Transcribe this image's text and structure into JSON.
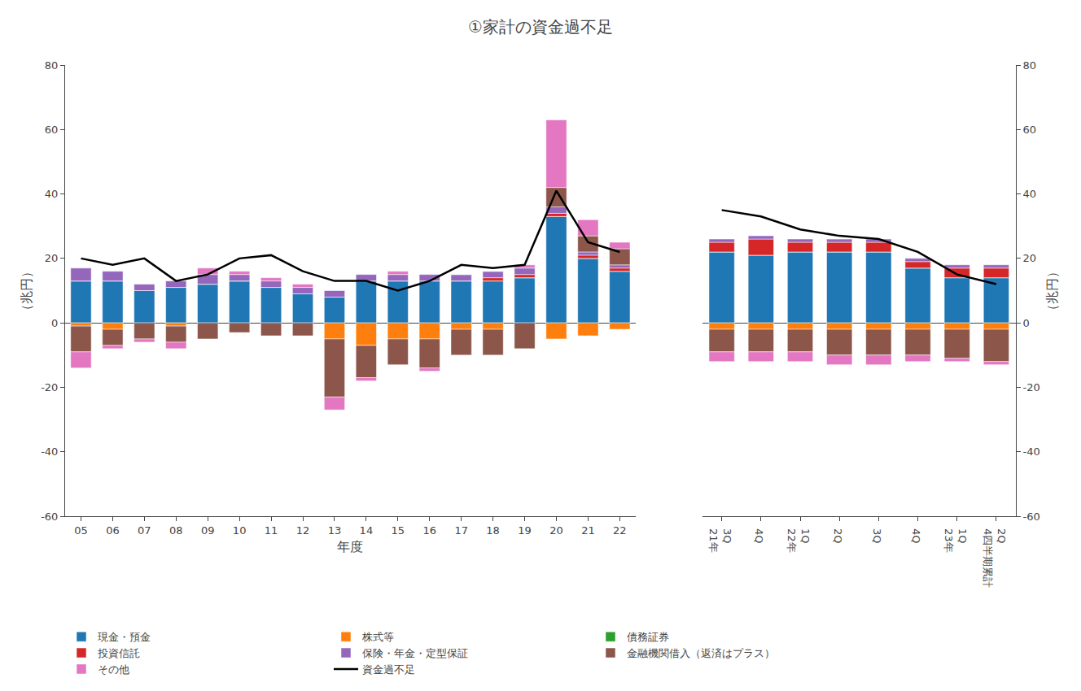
{
  "chart_data": [
    {
      "type": "bar",
      "stacked": true,
      "title": "①家計の資金過不足",
      "xlabel": "年度",
      "ylabel": "（兆円）",
      "categories": [
        "05",
        "06",
        "07",
        "08",
        "09",
        "10",
        "11",
        "12",
        "13",
        "14",
        "15",
        "16",
        "17",
        "18",
        "19",
        "20",
        "21",
        "22"
      ],
      "ylim": [
        -60,
        80
      ],
      "yticks": [
        -60,
        -40,
        -20,
        0,
        20,
        40,
        60,
        80
      ],
      "grid": false,
      "legend": "bottom",
      "series": [
        {
          "name": "現金・預金",
          "type": "bar",
          "color": "#1f77b4",
          "values": [
            13,
            13,
            10,
            11,
            12,
            13,
            11,
            9,
            8,
            13,
            13,
            13,
            13,
            13,
            14,
            33,
            20,
            16
          ]
        },
        {
          "name": "株式等",
          "type": "bar",
          "color": "#ff7f0e",
          "values": [
            -1,
            -2,
            0,
            -1,
            0,
            0,
            0,
            0,
            -5,
            -7,
            -5,
            -5,
            -2,
            -2,
            0,
            -5,
            -4,
            -2
          ]
        },
        {
          "name": "債務証券",
          "type": "bar",
          "color": "#2ca02c",
          "values": [
            0,
            0,
            0,
            0,
            0,
            0,
            0,
            0,
            0,
            0,
            0,
            0,
            0,
            0,
            0,
            0,
            0,
            0
          ]
        },
        {
          "name": "投資信託",
          "type": "bar",
          "color": "#d62728",
          "values": [
            0,
            0,
            0,
            0,
            0,
            0,
            0,
            0,
            0,
            0,
            0,
            0,
            0,
            1,
            1,
            1,
            1,
            1
          ]
        },
        {
          "name": "保険・年金・定型保証",
          "type": "bar",
          "color": "#9467bd",
          "values": [
            4,
            3,
            2,
            2,
            3,
            2,
            2,
            2,
            2,
            2,
            2,
            2,
            2,
            2,
            2,
            2,
            1,
            1
          ]
        },
        {
          "name": "金融機関借入（返済はプラス）",
          "type": "bar",
          "color": "#8c564b",
          "values": [
            -8,
            -5,
            -5,
            -5,
            -5,
            -3,
            -4,
            -4,
            -18,
            -10,
            -8,
            -9,
            -8,
            -8,
            -8,
            6,
            5,
            5
          ]
        },
        {
          "name": "その他",
          "type": "bar",
          "color": "#e377c2",
          "values": [
            -5,
            -1,
            -1,
            -2,
            2,
            1,
            1,
            1,
            -4,
            -1,
            1,
            -1,
            0,
            0,
            1,
            21,
            5,
            2
          ]
        },
        {
          "name": "資金過不足",
          "type": "line",
          "color": "#000000",
          "values": [
            20,
            18,
            20,
            13,
            15,
            20,
            21,
            16,
            13,
            13,
            10,
            13,
            18,
            17,
            18,
            41,
            25,
            22
          ]
        }
      ]
    },
    {
      "type": "bar",
      "stacked": true,
      "ylabel": "（兆円）",
      "categories": [
        "3Q\n21年",
        "4Q",
        "1Q\n22年",
        "2Q",
        "3Q",
        "4Q",
        "1Q\n23年",
        "2Q\n4四半期累計"
      ],
      "ylim": [
        -60,
        80
      ],
      "yticks": [
        -60,
        -40,
        -20,
        0,
        20,
        40,
        60,
        80
      ],
      "grid": false,
      "series": [
        {
          "name": "現金・預金",
          "type": "bar",
          "color": "#1f77b4",
          "values": [
            22,
            21,
            22,
            22,
            22,
            17,
            14,
            14
          ]
        },
        {
          "name": "株式等",
          "type": "bar",
          "color": "#ff7f0e",
          "values": [
            -2,
            -2,
            -2,
            -2,
            -2,
            -2,
            -2,
            -2
          ]
        },
        {
          "name": "債務証券",
          "type": "bar",
          "color": "#2ca02c",
          "values": [
            0,
            0,
            0,
            0,
            0,
            0,
            0,
            0
          ]
        },
        {
          "name": "投資信託",
          "type": "bar",
          "color": "#d62728",
          "values": [
            3,
            5,
            3,
            3,
            3,
            2,
            3,
            3
          ]
        },
        {
          "name": "保険・年金・定型保証",
          "type": "bar",
          "color": "#9467bd",
          "values": [
            1,
            1,
            1,
            1,
            1,
            1,
            1,
            1
          ]
        },
        {
          "name": "金融機関借入（返済はプラス）",
          "type": "bar",
          "color": "#8c564b",
          "values": [
            -7,
            -7,
            -7,
            -8,
            -8,
            -8,
            -9,
            -10
          ]
        },
        {
          "name": "その他",
          "type": "bar",
          "color": "#e377c2",
          "values": [
            -3,
            -3,
            -3,
            -3,
            -3,
            -2,
            -1,
            -1
          ]
        },
        {
          "name": "資金過不足",
          "type": "line",
          "color": "#000000",
          "values": [
            35,
            33,
            29,
            27,
            26,
            22,
            15,
            12
          ]
        }
      ]
    }
  ]
}
